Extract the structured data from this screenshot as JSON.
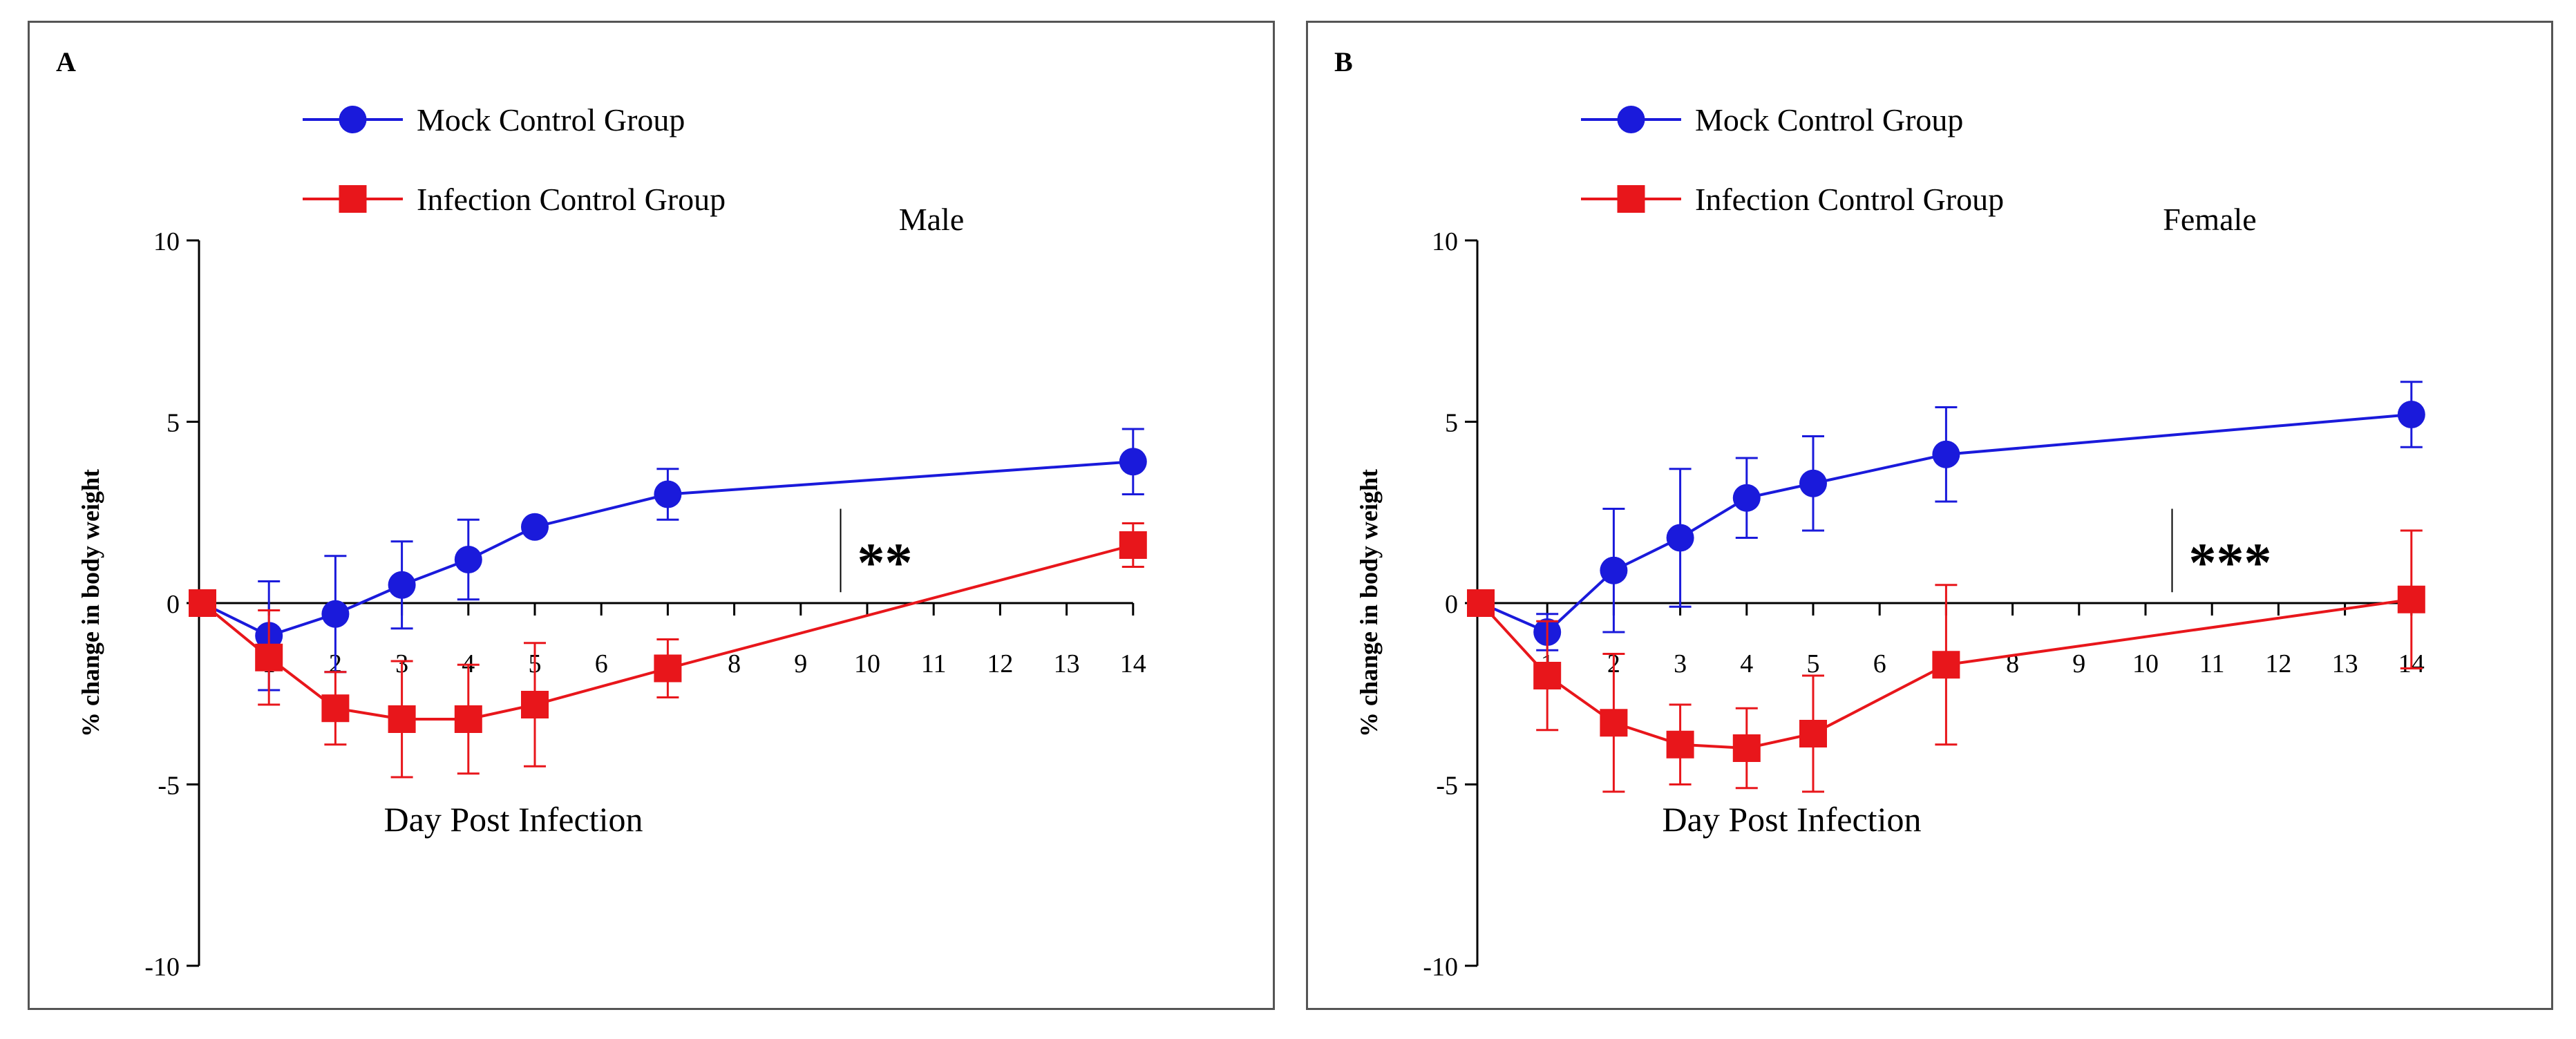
{
  "chart_data": [
    {
      "type": "line",
      "panel_label": "A",
      "title": "Male",
      "xlabel": "Day Post Infection",
      "ylabel": "% change in body weight",
      "xlim": [
        0,
        14
      ],
      "ylim": [
        -10,
        10
      ],
      "x_ticks": [
        1,
        2,
        3,
        4,
        5,
        6,
        7,
        8,
        9,
        10,
        11,
        12,
        13,
        14
      ],
      "y_ticks": [
        -10,
        -5,
        0,
        5,
        10
      ],
      "annotation": "**",
      "annotation_x": 9.6,
      "series": [
        {
          "name": "Mock Control  Group",
          "color": "#1a1adb",
          "marker": "circle",
          "x": [
            0,
            1,
            2,
            3,
            4,
            5,
            7,
            14
          ],
          "values": [
            0,
            -0.9,
            -0.3,
            0.5,
            1.2,
            2.1,
            3.0,
            3.9
          ],
          "errors": [
            0,
            1.5,
            1.6,
            1.2,
            1.1,
            0.1,
            0.7,
            0.9
          ]
        },
        {
          "name": "Infection Control Group",
          "color": "#e8161b",
          "marker": "square",
          "x": [
            0,
            1,
            2,
            3,
            4,
            5,
            7,
            14
          ],
          "values": [
            0,
            -1.5,
            -2.9,
            -3.2,
            -3.2,
            -2.8,
            -1.8,
            1.6
          ],
          "errors": [
            0,
            1.3,
            1.0,
            1.6,
            1.5,
            1.7,
            0.8,
            0.6
          ]
        }
      ]
    },
    {
      "type": "line",
      "panel_label": "B",
      "title": "Female",
      "xlabel": "Day Post Infection",
      "ylabel": "% change in body weight",
      "xlim": [
        0,
        14
      ],
      "ylim": [
        -10,
        10
      ],
      "x_ticks": [
        1,
        2,
        3,
        4,
        5,
        6,
        7,
        8,
        9,
        10,
        11,
        12,
        13,
        14
      ],
      "y_ticks": [
        -10,
        -5,
        0,
        5,
        10
      ],
      "annotation": "***",
      "annotation_x": 10.4,
      "series": [
        {
          "name": "Mock Control  Group",
          "color": "#1a1adb",
          "marker": "circle",
          "x": [
            0,
            1,
            2,
            3,
            4,
            5,
            7,
            14
          ],
          "values": [
            0,
            -0.8,
            0.9,
            1.8,
            2.9,
            3.3,
            4.1,
            5.2
          ],
          "errors": [
            0,
            0.5,
            1.7,
            1.9,
            1.1,
            1.3,
            1.3,
            0.9
          ]
        },
        {
          "name": "Infection Control Group",
          "color": "#e8161b",
          "marker": "square",
          "x": [
            0,
            1,
            2,
            3,
            4,
            5,
            7,
            14
          ],
          "values": [
            0,
            -2.0,
            -3.3,
            -3.9,
            -4.0,
            -3.6,
            -1.7,
            0.1
          ],
          "errors": [
            0,
            1.5,
            1.9,
            1.1,
            1.1,
            1.6,
            2.2,
            1.9
          ]
        }
      ]
    }
  ]
}
